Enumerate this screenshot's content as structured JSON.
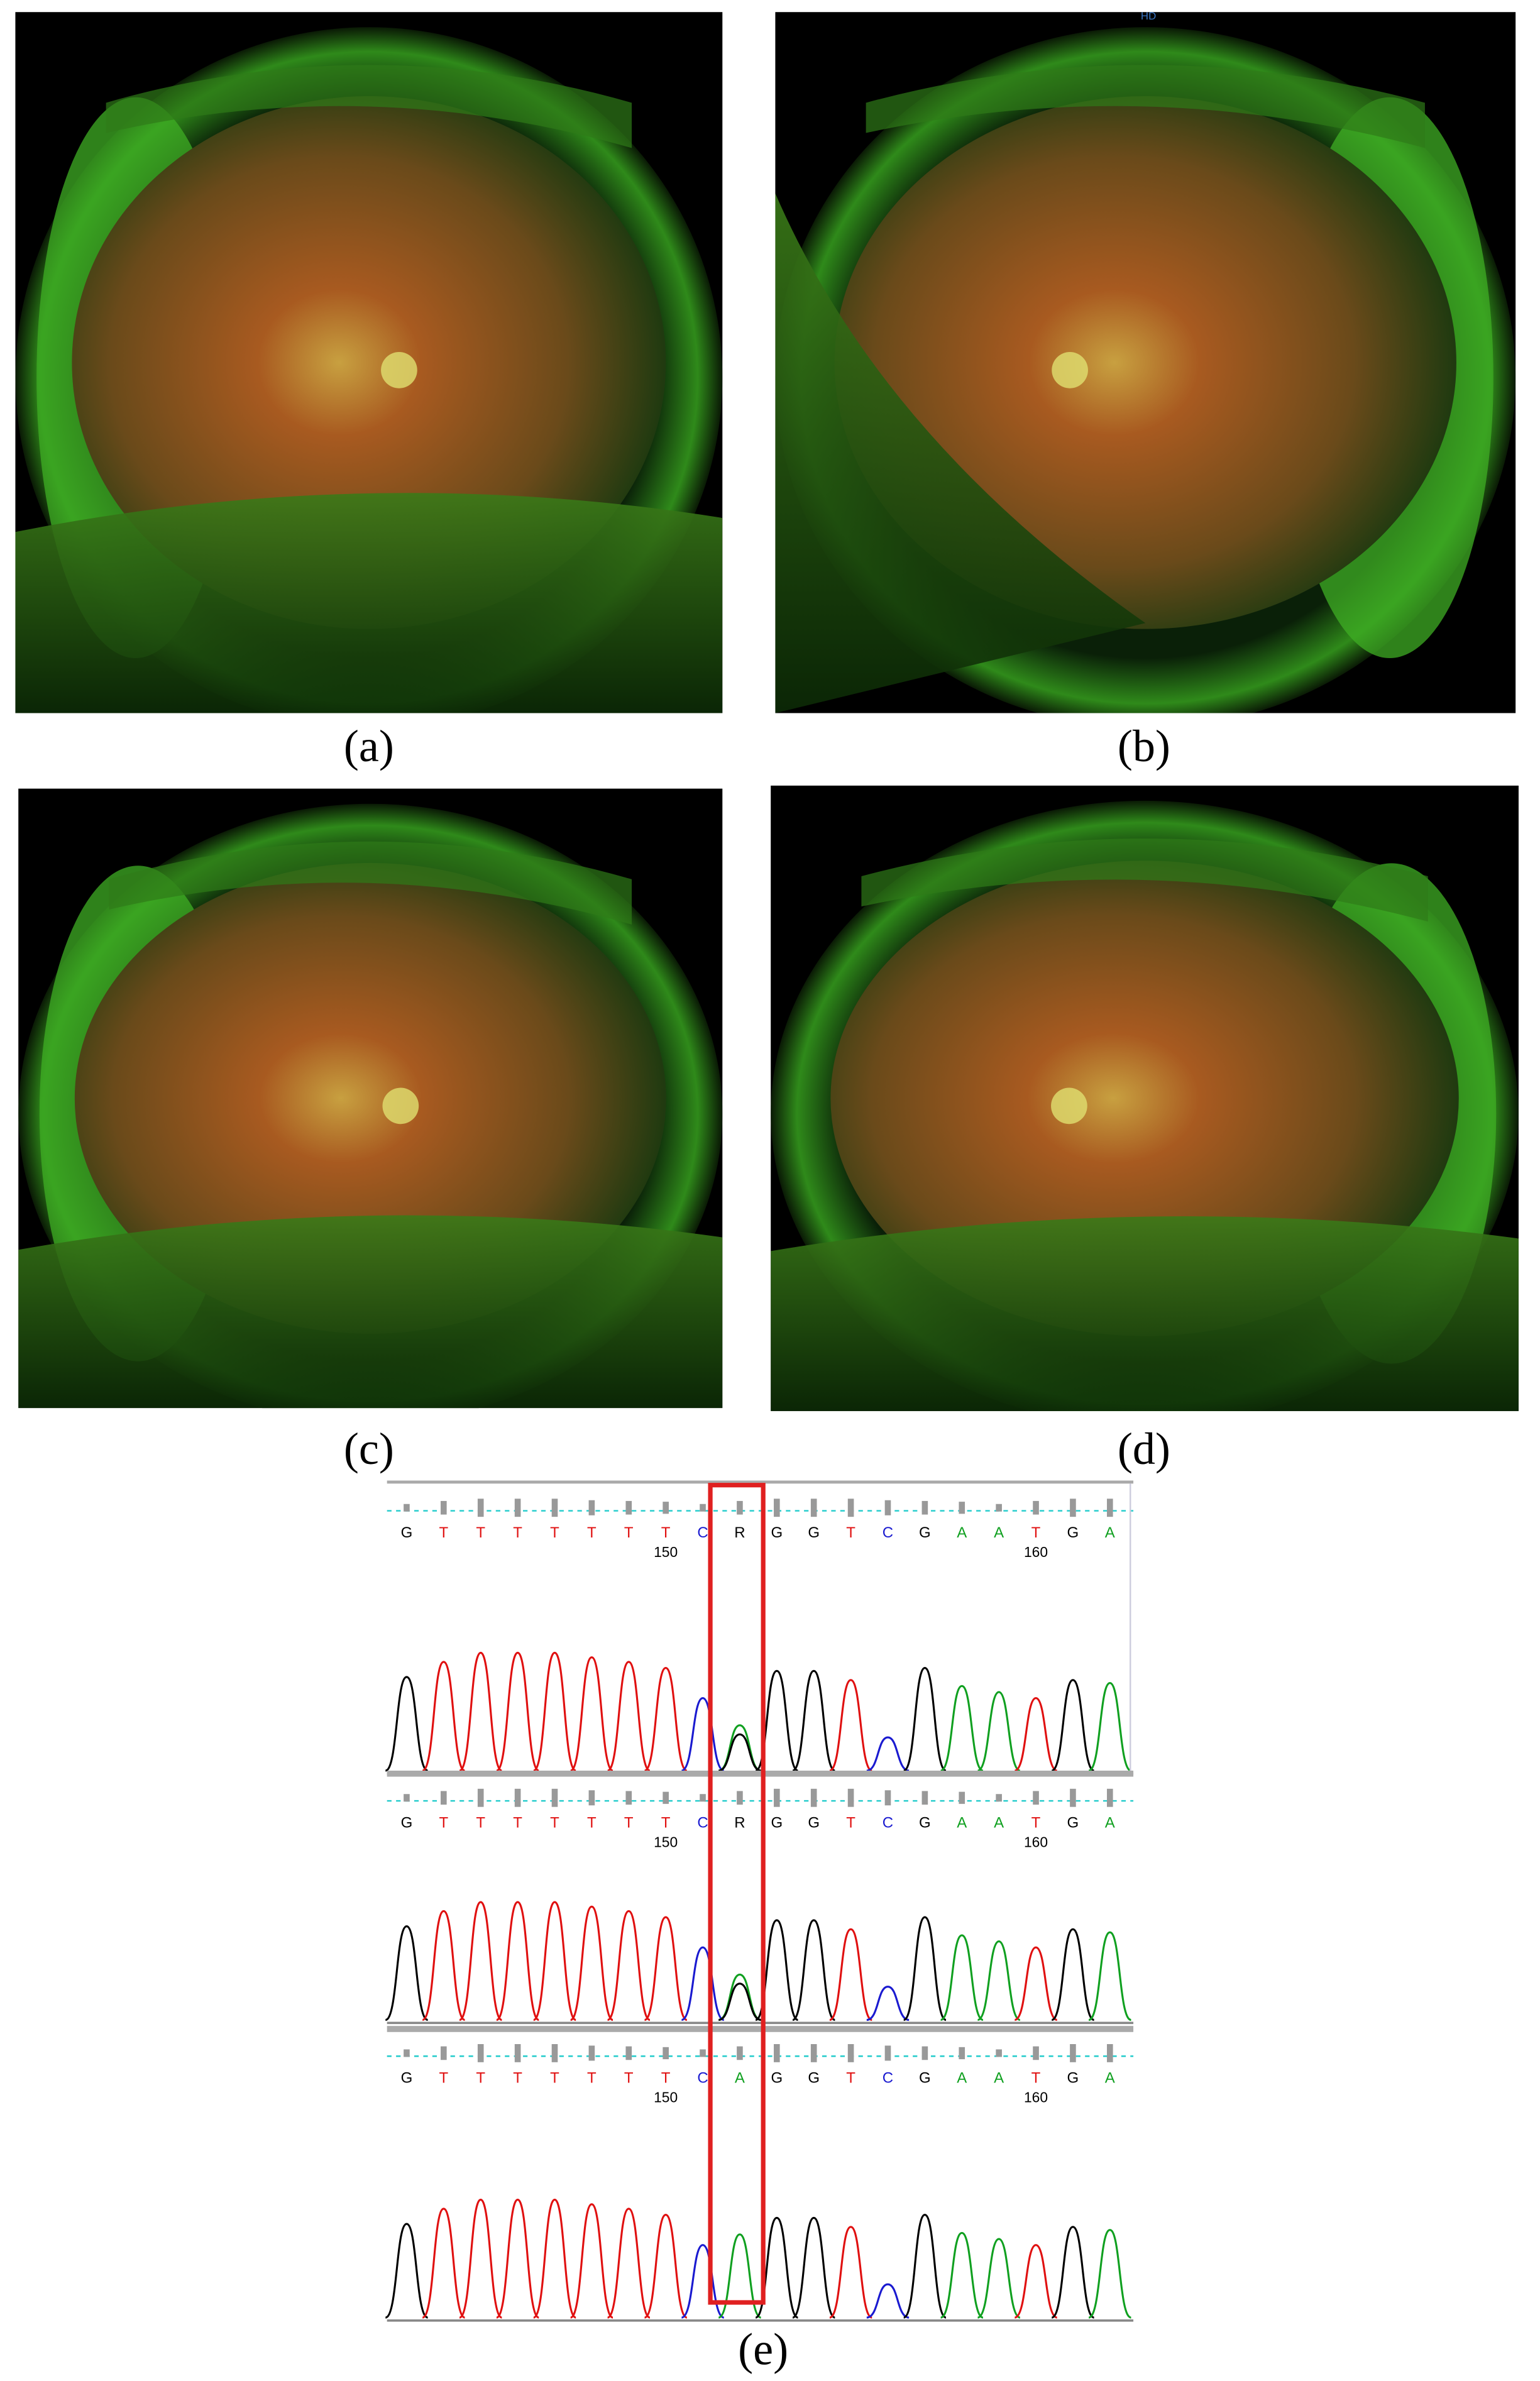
{
  "panels": [
    {
      "label": "(a)"
    },
    {
      "label": "(b)"
    },
    {
      "label": "(c)"
    },
    {
      "label": "(d)"
    }
  ],
  "hd_badge": "HD",
  "sequencing": {
    "label": "(e)",
    "base_colors": {
      "G": "#000000",
      "T": "#e01010",
      "C": "#1a1ad0",
      "A": "#10a020",
      "R": "#000000"
    },
    "tracks": [
      {
        "bases": [
          "G",
          "T",
          "T",
          "T",
          "T",
          "T",
          "T",
          "T",
          "C",
          "R",
          "G",
          "G",
          "T",
          "C",
          "G",
          "A",
          "A",
          "T",
          "G",
          "A"
        ],
        "ruler": [
          "150",
          "160"
        ]
      },
      {
        "bases": [
          "G",
          "T",
          "T",
          "T",
          "T",
          "T",
          "T",
          "T",
          "C",
          "R",
          "G",
          "G",
          "T",
          "C",
          "G",
          "A",
          "A",
          "T",
          "G",
          "A"
        ],
        "ruler": [
          "150",
          "160"
        ]
      },
      {
        "bases": [
          "G",
          "T",
          "T",
          "T",
          "T",
          "T",
          "T",
          "T",
          "C",
          "A",
          "G",
          "G",
          "T",
          "C",
          "G",
          "A",
          "A",
          "T",
          "G",
          "A"
        ],
        "ruler": [
          "150",
          "160"
        ]
      }
    ]
  }
}
